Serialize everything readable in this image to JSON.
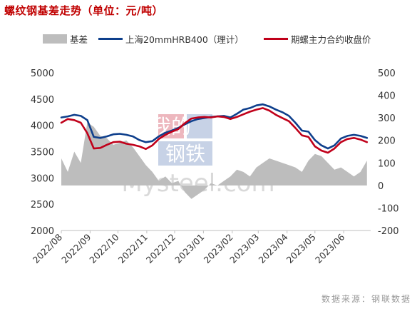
{
  "title": "螺纹钢基差走势（单位：元/吨）",
  "source": "数据来源：钢联数据",
  "watermark": {
    "top": "我的",
    "bottom": "钢铁",
    "site": "Mysteel.com"
  },
  "legend": [
    {
      "label": "基差",
      "kind": "area",
      "color": "#bdbdbd"
    },
    {
      "label": "上海20mmHRB400（理计）",
      "kind": "line",
      "color": "#0e3f8c"
    },
    {
      "label": "期螺主力合约收盘价",
      "kind": "line",
      "color": "#c0001a"
    }
  ],
  "chart_data": {
    "type": "line",
    "x_dates": [
      "2022-08-01",
      "2022-08-08",
      "2022-08-15",
      "2022-08-22",
      "2022-08-29",
      "2022-09-05",
      "2022-09-12",
      "2022-09-19",
      "2022-09-26",
      "2022-10-03",
      "2022-10-10",
      "2022-10-17",
      "2022-10-24",
      "2022-10-31",
      "2022-11-07",
      "2022-11-14",
      "2022-11-21",
      "2022-11-28",
      "2022-12-05",
      "2022-12-12",
      "2022-12-19",
      "2022-12-26",
      "2023-01-02",
      "2023-01-09",
      "2023-01-16",
      "2023-01-23",
      "2023-01-30",
      "2023-02-06",
      "2023-02-13",
      "2023-02-20",
      "2023-02-27",
      "2023-03-06",
      "2023-03-13",
      "2023-03-20",
      "2023-03-27",
      "2023-04-03",
      "2023-04-10",
      "2023-04-17",
      "2023-04-24",
      "2023-05-01",
      "2023-05-08",
      "2023-05-15",
      "2023-05-22",
      "2023-05-29",
      "2023-06-05",
      "2023-06-12",
      "2023-06-19",
      "2023-06-26"
    ],
    "x_tick_labels": [
      "2022/08",
      "2022/09",
      "2022/10",
      "2022/11",
      "2022/12",
      "2023/01",
      "2023/02",
      "2023/03",
      "2023/04",
      "2023/05",
      "2023/06"
    ],
    "y_left": {
      "min": 2000,
      "max": 5000,
      "ticks": [
        2000,
        2500,
        3000,
        3500,
        4000,
        4500,
        5000
      ]
    },
    "y_right": {
      "min": -200,
      "max": 500,
      "ticks": [
        -200,
        -100,
        0,
        100,
        200,
        300,
        400,
        500
      ]
    },
    "series": [
      {
        "name": "基差",
        "axis": "right",
        "style": "area",
        "values": [
          120,
          60,
          150,
          100,
          280,
          260,
          220,
          210,
          180,
          190,
          200,
          170,
          130,
          90,
          60,
          20,
          40,
          10,
          20,
          -30,
          -60,
          -40,
          -20,
          10,
          0,
          20,
          40,
          70,
          60,
          40,
          80,
          100,
          120,
          110,
          100,
          90,
          80,
          60,
          110,
          140,
          130,
          100,
          70,
          80,
          60,
          40,
          60,
          110
        ]
      },
      {
        "name": "上海20mmHRB400（理计）",
        "axis": "left",
        "style": "line",
        "values": [
          4150,
          4170,
          4200,
          4180,
          4100,
          3780,
          3760,
          3790,
          3830,
          3840,
          3820,
          3790,
          3720,
          3680,
          3700,
          3790,
          3860,
          3900,
          3950,
          4020,
          4080,
          4120,
          4140,
          4160,
          4170,
          4180,
          4150,
          4220,
          4300,
          4330,
          4380,
          4400,
          4360,
          4300,
          4250,
          4180,
          4050,
          3900,
          3880,
          3720,
          3620,
          3560,
          3620,
          3750,
          3800,
          3820,
          3800,
          3760
        ]
      },
      {
        "name": "期螺主力合约收盘价",
        "axis": "left",
        "style": "line",
        "values": [
          4050,
          4120,
          4100,
          4050,
          3850,
          3560,
          3570,
          3630,
          3680,
          3690,
          3650,
          3630,
          3600,
          3550,
          3620,
          3740,
          3820,
          3880,
          3930,
          4040,
          4130,
          4150,
          4160,
          4150,
          4170,
          4160,
          4120,
          4160,
          4210,
          4260,
          4300,
          4330,
          4280,
          4200,
          4140,
          4080,
          3950,
          3810,
          3780,
          3600,
          3520,
          3480,
          3560,
          3680,
          3740,
          3760,
          3730,
          3680
        ]
      }
    ]
  }
}
